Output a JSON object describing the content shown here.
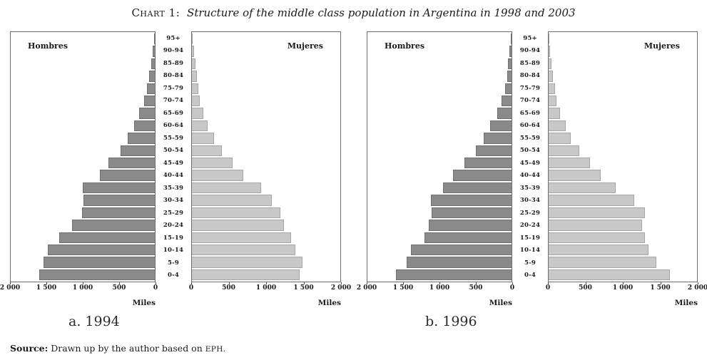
{
  "title": {
    "prefix": "Chart 1:",
    "text": "Structure of the middle class population in Argentina in 1998 and 2003"
  },
  "source": {
    "label": "Source:",
    "text": " Drawn up by the author based on ",
    "suffix": "EPH."
  },
  "colors": {
    "hombres_bar": "#8a8a8a",
    "mujeres_bar": "#c8c8c8",
    "panel_border": "#6e6e6e"
  },
  "chart_data": [
    {
      "type": "bar",
      "subtype": "population_pyramid",
      "caption": "a. 1994",
      "left_label": "Hombres",
      "right_label": "Mujeres",
      "axis_label": "Miles",
      "xlim": [
        0,
        2000
      ],
      "x_ticks_left": [
        "2 000",
        "1 500",
        "1 000",
        "500",
        "0"
      ],
      "x_ticks_right": [
        "0",
        "500",
        "1 000",
        "1 500",
        "2 000"
      ],
      "categories": [
        "95+",
        "90-94",
        "85-89",
        "80-84",
        "75-79",
        "70-74",
        "65-69",
        "60-64",
        "55-59",
        "50-54",
        "45-49",
        "40-44",
        "35-39",
        "30-34",
        "25-29",
        "20-24",
        "15-19",
        "10-14",
        "5-9",
        "0-4"
      ],
      "series": [
        {
          "name": "Hombres",
          "side": "left",
          "color": "#8a8a8a",
          "values": [
            15,
            30,
            50,
            75,
            105,
            150,
            215,
            285,
            380,
            480,
            645,
            760,
            1000,
            990,
            1010,
            1150,
            1330,
            1490,
            1545,
            1600
          ]
        },
        {
          "name": "Mujeres",
          "side": "right",
          "color": "#c8c8c8",
          "values": [
            12,
            25,
            45,
            65,
            85,
            110,
            155,
            215,
            295,
            405,
            550,
            695,
            930,
            1075,
            1190,
            1245,
            1340,
            1395,
            1490,
            1455
          ]
        }
      ]
    },
    {
      "type": "bar",
      "subtype": "population_pyramid",
      "caption": "b. 1996",
      "left_label": "Hombres",
      "right_label": "Mujeres",
      "axis_label": "Miles",
      "xlim": [
        0,
        2000
      ],
      "x_ticks_left": [
        "2 000",
        "1 500",
        "1 000",
        "500",
        "0"
      ],
      "x_ticks_right": [
        "0",
        "500",
        "1 000",
        "1 500",
        "2 000"
      ],
      "categories": [
        "95+",
        "90-94",
        "85-89",
        "80-84",
        "75-79",
        "70-74",
        "65-69",
        "60-64",
        "55-59",
        "50-54",
        "45-49",
        "40-44",
        "35-39",
        "30-34",
        "25-29",
        "20-24",
        "15-19",
        "10-14",
        "5-9",
        "0-4"
      ],
      "series": [
        {
          "name": "Hombres",
          "side": "left",
          "color": "#8a8a8a",
          "values": [
            12,
            28,
            45,
            62,
            92,
            138,
            200,
            295,
            385,
            495,
            650,
            815,
            950,
            1115,
            1110,
            1150,
            1205,
            1400,
            1455,
            1600
          ]
        },
        {
          "name": "Mujeres",
          "side": "right",
          "color": "#c8c8c8",
          "values": [
            10,
            22,
            40,
            58,
            85,
            105,
            150,
            230,
            300,
            410,
            555,
            700,
            905,
            1150,
            1295,
            1260,
            1300,
            1350,
            1450,
            1630
          ]
        }
      ]
    }
  ]
}
